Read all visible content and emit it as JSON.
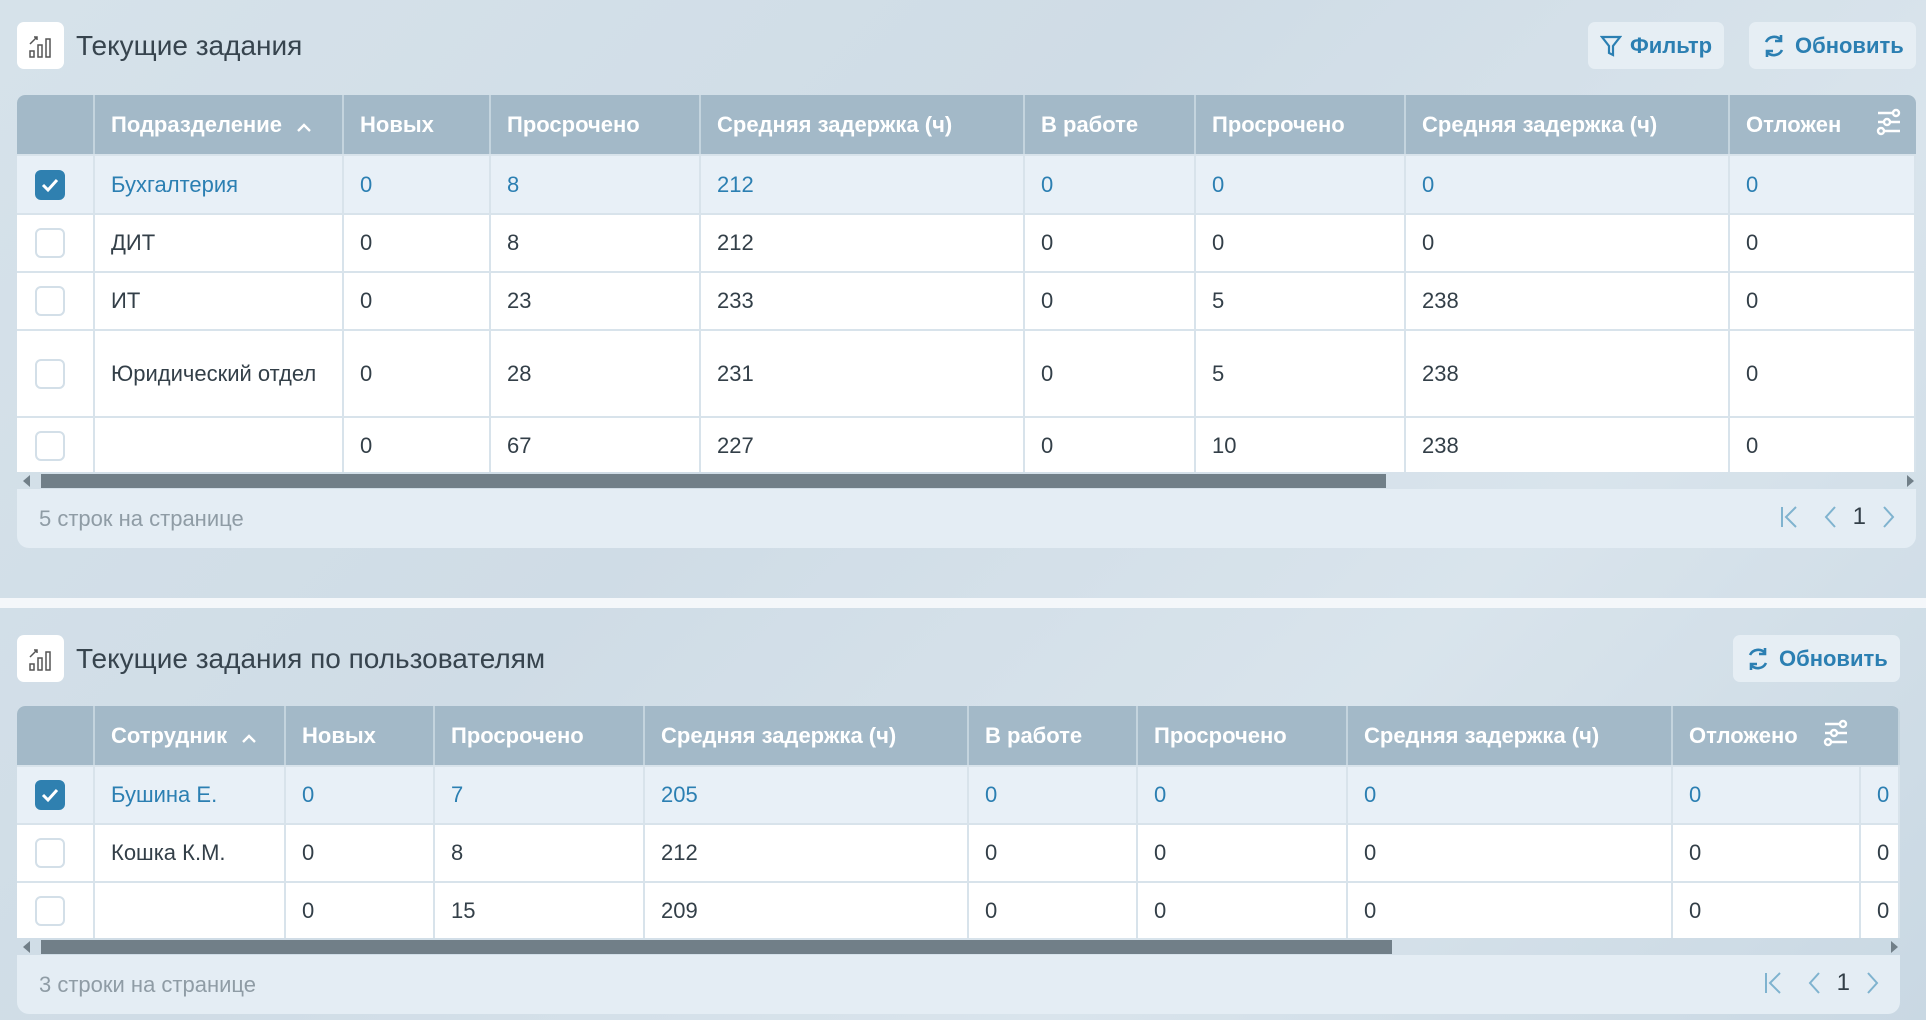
{
  "panel1": {
    "title": "Текущие задания",
    "filter_label": "Фильтр",
    "refresh_label": "Обновить",
    "columns": [
      "Подразделение",
      "Новых",
      "Просрочено",
      "Средняя задержка (ч)",
      "В работе",
      "Просрочено",
      "Средняя задержка (ч)",
      "Отложен"
    ],
    "sorted_column": "Подразделение",
    "rows": [
      {
        "checked": true,
        "cells": [
          "Бухгалтерия",
          "0",
          "8",
          "212",
          "0",
          "0",
          "0",
          "0"
        ]
      },
      {
        "checked": false,
        "cells": [
          "ДИТ",
          "0",
          "8",
          "212",
          "0",
          "0",
          "0",
          "0"
        ]
      },
      {
        "checked": false,
        "cells": [
          "ИТ",
          "0",
          "23",
          "233",
          "0",
          "5",
          "238",
          "0"
        ]
      },
      {
        "checked": false,
        "cells": [
          "Юридический отдел",
          "0",
          "28",
          "231",
          "0",
          "5",
          "238",
          "0"
        ]
      },
      {
        "checked": false,
        "cells": [
          "",
          "0",
          "67",
          "227",
          "0",
          "10",
          "238",
          "0"
        ]
      }
    ],
    "rows_per_page": "5 строк на странице",
    "page": "1"
  },
  "panel2": {
    "title": "Текущие задания по пользователям",
    "refresh_label": "Обновить",
    "columns": [
      "Сотрудник",
      "Новых",
      "Просрочено",
      "Средняя задержка (ч)",
      "В работе",
      "Просрочено",
      "Средняя задержка (ч)",
      "Отложено",
      ""
    ],
    "sorted_column": "Сотрудник",
    "rows": [
      {
        "checked": true,
        "cells": [
          "Бушина Е.",
          "0",
          "7",
          "205",
          "0",
          "0",
          "0",
          "0",
          "0"
        ]
      },
      {
        "checked": false,
        "cells": [
          "Кошка К.М.",
          "0",
          "8",
          "212",
          "0",
          "0",
          "0",
          "0",
          "0"
        ]
      },
      {
        "checked": false,
        "cells": [
          "",
          "0",
          "15",
          "209",
          "0",
          "0",
          "0",
          "0",
          "0"
        ]
      }
    ],
    "rows_per_page": "3 строки на странице",
    "page": "1"
  },
  "colors": {
    "accent": "#2b7fb2",
    "header_bg": "#a3b9c8",
    "selected_row_bg": "#e8f0f7"
  }
}
